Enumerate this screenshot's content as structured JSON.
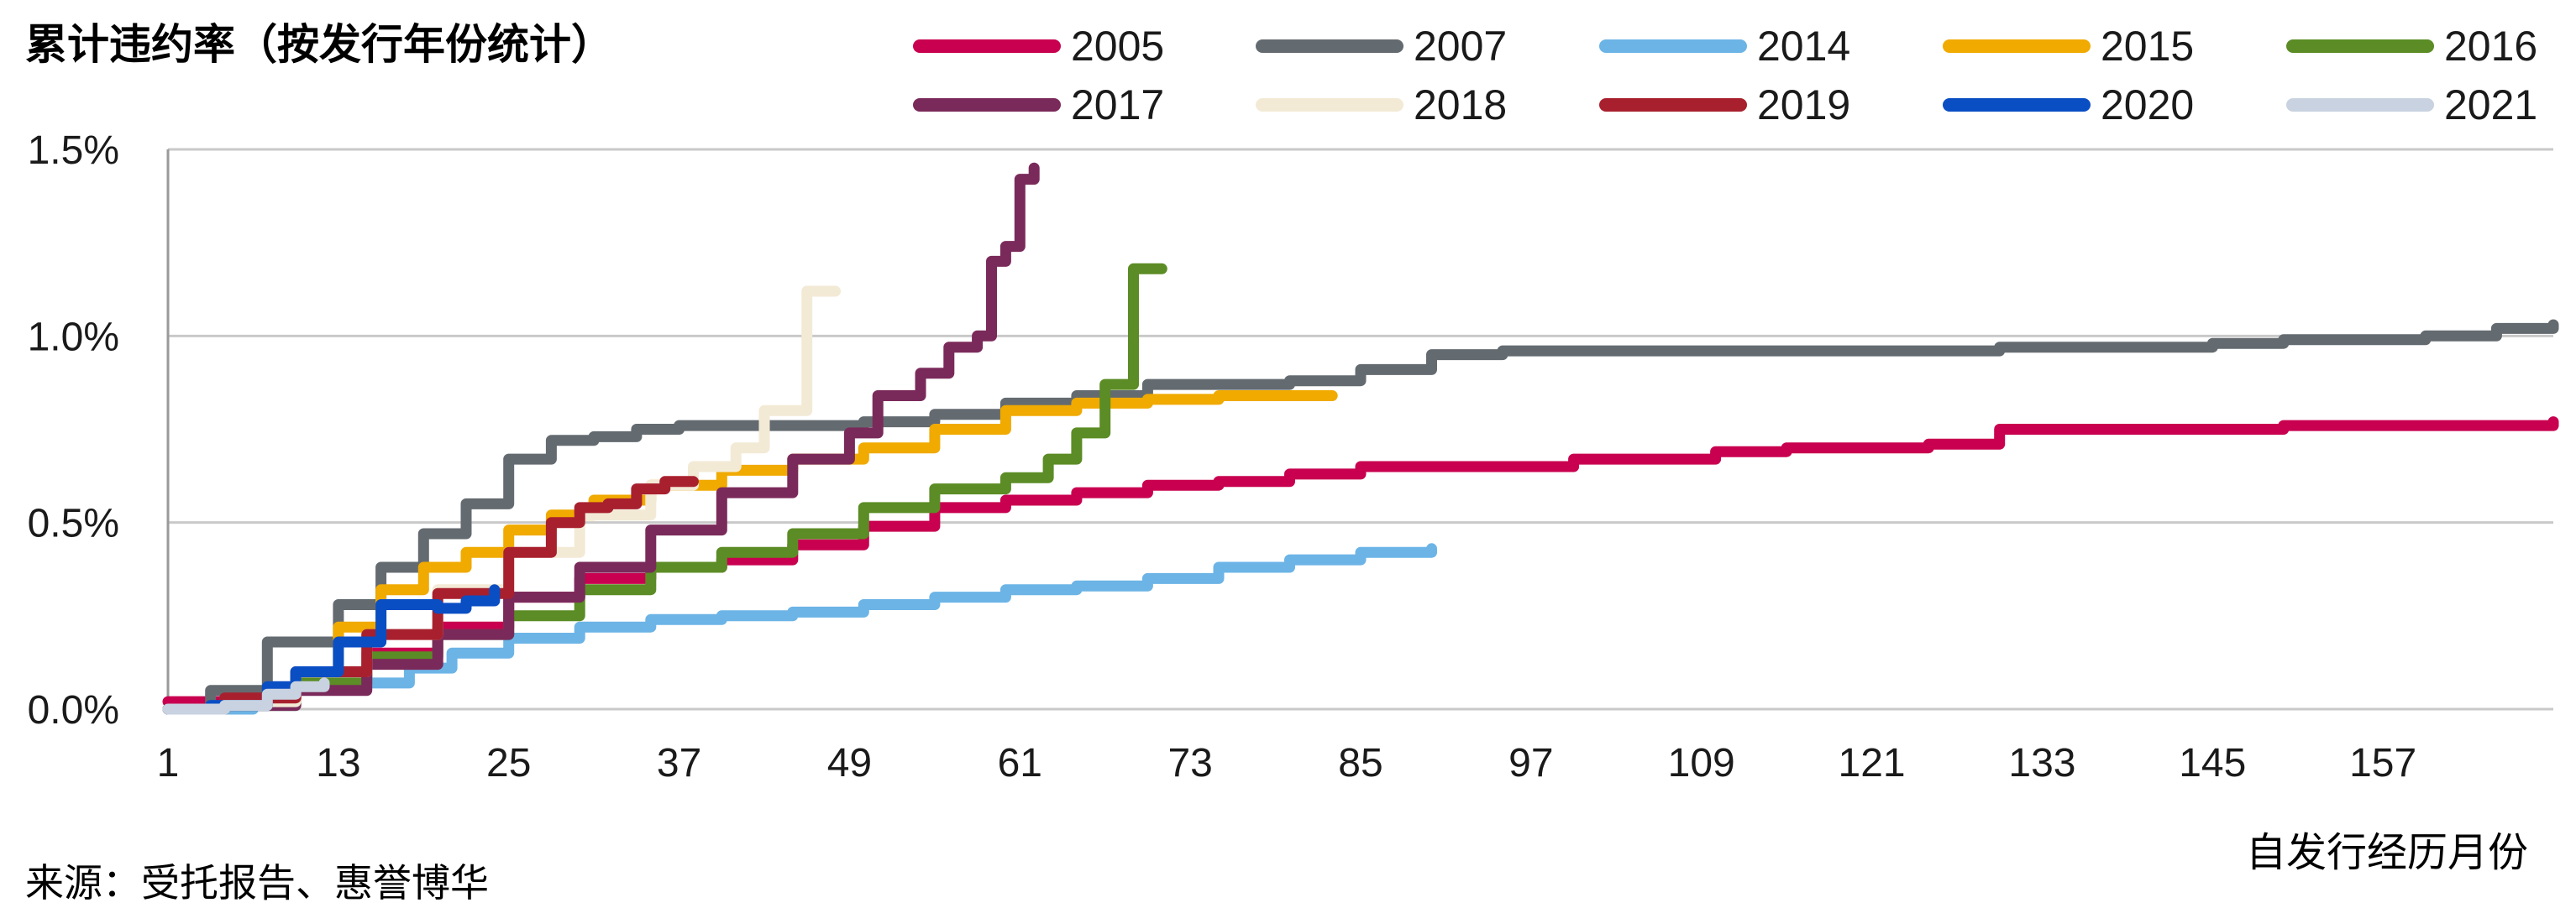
{
  "chart_data": {
    "type": "line",
    "title": "累计违约率（按发行年份统计）",
    "xlabel": "自发行经历月份",
    "ylabel": "",
    "source": "来源：受托报告、惠誉博华",
    "legend_position": "top",
    "grid": true,
    "xlim": [
      1,
      169
    ],
    "ylim": [
      0,
      1.5
    ],
    "x_ticks": [
      "1",
      "13",
      "25",
      "37",
      "49",
      "61",
      "73",
      "85",
      "97",
      "109",
      "121",
      "133",
      "145",
      "157"
    ],
    "y_ticks": [
      "0.0%",
      "0.5%",
      "1.0%",
      "1.5%"
    ],
    "y_tick_values": [
      0,
      0.5,
      1.0,
      1.5
    ],
    "series": [
      {
        "name": "2005",
        "color": "#c8004f",
        "points": [
          [
            1,
            0.02
          ],
          [
            5,
            0.03
          ],
          [
            10,
            0.07
          ],
          [
            15,
            0.15
          ],
          [
            20,
            0.22
          ],
          [
            25,
            0.3
          ],
          [
            30,
            0.35
          ],
          [
            35,
            0.38
          ],
          [
            40,
            0.4
          ],
          [
            45,
            0.44
          ],
          [
            50,
            0.49
          ],
          [
            55,
            0.54
          ],
          [
            60,
            0.56
          ],
          [
            65,
            0.58
          ],
          [
            70,
            0.6
          ],
          [
            75,
            0.61
          ],
          [
            80,
            0.63
          ],
          [
            85,
            0.65
          ],
          [
            95,
            0.65
          ],
          [
            100,
            0.67
          ],
          [
            110,
            0.69
          ],
          [
            115,
            0.7
          ],
          [
            125,
            0.71
          ],
          [
            130,
            0.75
          ],
          [
            145,
            0.75
          ],
          [
            150,
            0.76
          ],
          [
            165,
            0.76
          ],
          [
            169,
            0.77
          ]
        ]
      },
      {
        "name": "2007",
        "color": "#646b70",
        "points": [
          [
            1,
            0.0
          ],
          [
            4,
            0.05
          ],
          [
            8,
            0.18
          ],
          [
            13,
            0.28
          ],
          [
            16,
            0.38
          ],
          [
            19,
            0.47
          ],
          [
            22,
            0.55
          ],
          [
            25,
            0.67
          ],
          [
            28,
            0.72
          ],
          [
            31,
            0.73
          ],
          [
            34,
            0.75
          ],
          [
            37,
            0.76
          ],
          [
            45,
            0.76
          ],
          [
            50,
            0.77
          ],
          [
            55,
            0.79
          ],
          [
            60,
            0.82
          ],
          [
            65,
            0.84
          ],
          [
            70,
            0.87
          ],
          [
            80,
            0.88
          ],
          [
            85,
            0.91
          ],
          [
            90,
            0.95
          ],
          [
            95,
            0.96
          ],
          [
            125,
            0.96
          ],
          [
            130,
            0.97
          ],
          [
            145,
            0.98
          ],
          [
            150,
            0.99
          ],
          [
            160,
            1.0
          ],
          [
            165,
            1.02
          ],
          [
            169,
            1.03
          ]
        ]
      },
      {
        "name": "2014",
        "color": "#6cb4e6",
        "points": [
          [
            1,
            0.0
          ],
          [
            7,
            0.01
          ],
          [
            10,
            0.06
          ],
          [
            15,
            0.07
          ],
          [
            18,
            0.11
          ],
          [
            21,
            0.15
          ],
          [
            25,
            0.19
          ],
          [
            30,
            0.22
          ],
          [
            35,
            0.24
          ],
          [
            40,
            0.25
          ],
          [
            45,
            0.26
          ],
          [
            50,
            0.28
          ],
          [
            55,
            0.3
          ],
          [
            60,
            0.32
          ],
          [
            65,
            0.33
          ],
          [
            70,
            0.35
          ],
          [
            75,
            0.38
          ],
          [
            80,
            0.4
          ],
          [
            85,
            0.42
          ],
          [
            90,
            0.43
          ]
        ]
      },
      {
        "name": "2015",
        "color": "#f0aa00",
        "points": [
          [
            1,
            0.0
          ],
          [
            5,
            0.02
          ],
          [
            10,
            0.1
          ],
          [
            13,
            0.22
          ],
          [
            16,
            0.32
          ],
          [
            19,
            0.38
          ],
          [
            22,
            0.42
          ],
          [
            25,
            0.48
          ],
          [
            28,
            0.52
          ],
          [
            31,
            0.56
          ],
          [
            35,
            0.6
          ],
          [
            40,
            0.64
          ],
          [
            45,
            0.67
          ],
          [
            50,
            0.7
          ],
          [
            55,
            0.75
          ],
          [
            60,
            0.8
          ],
          [
            65,
            0.82
          ],
          [
            70,
            0.83
          ],
          [
            75,
            0.84
          ],
          [
            83,
            0.84
          ]
        ]
      },
      {
        "name": "2016",
        "color": "#5b8c25",
        "points": [
          [
            1,
            0.0
          ],
          [
            5,
            0.01
          ],
          [
            10,
            0.07
          ],
          [
            15,
            0.14
          ],
          [
            20,
            0.2
          ],
          [
            25,
            0.25
          ],
          [
            30,
            0.32
          ],
          [
            35,
            0.38
          ],
          [
            40,
            0.42
          ],
          [
            45,
            0.47
          ],
          [
            50,
            0.54
          ],
          [
            55,
            0.59
          ],
          [
            60,
            0.62
          ],
          [
            63,
            0.67
          ],
          [
            65,
            0.74
          ],
          [
            67,
            0.87
          ],
          [
            69,
            1.18
          ],
          [
            71,
            1.18
          ]
        ]
      },
      {
        "name": "2017",
        "color": "#7a2a5a",
        "points": [
          [
            1,
            0.0
          ],
          [
            5,
            0.01
          ],
          [
            10,
            0.05
          ],
          [
            15,
            0.12
          ],
          [
            20,
            0.2
          ],
          [
            25,
            0.3
          ],
          [
            30,
            0.38
          ],
          [
            35,
            0.48
          ],
          [
            40,
            0.58
          ],
          [
            45,
            0.67
          ],
          [
            49,
            0.74
          ],
          [
            51,
            0.84
          ],
          [
            54,
            0.9
          ],
          [
            56,
            0.97
          ],
          [
            58,
            1.0
          ],
          [
            59,
            1.2
          ],
          [
            60,
            1.24
          ],
          [
            61,
            1.42
          ],
          [
            62,
            1.45
          ]
        ]
      },
      {
        "name": "2018",
        "color": "#f3ead6",
        "points": [
          [
            1,
            0.0
          ],
          [
            5,
            0.02
          ],
          [
            10,
            0.1
          ],
          [
            15,
            0.2
          ],
          [
            20,
            0.32
          ],
          [
            25,
            0.42
          ],
          [
            30,
            0.52
          ],
          [
            35,
            0.6
          ],
          [
            38,
            0.65
          ],
          [
            41,
            0.7
          ],
          [
            43,
            0.8
          ],
          [
            44,
            0.8
          ],
          [
            46,
            1.12
          ],
          [
            48,
            1.12
          ]
        ]
      },
      {
        "name": "2019",
        "color": "#a8202e",
        "points": [
          [
            1,
            0.0
          ],
          [
            5,
            0.03
          ],
          [
            10,
            0.1
          ],
          [
            15,
            0.2
          ],
          [
            20,
            0.31
          ],
          [
            25,
            0.42
          ],
          [
            28,
            0.5
          ],
          [
            30,
            0.54
          ],
          [
            32,
            0.55
          ],
          [
            34,
            0.59
          ],
          [
            36,
            0.61
          ],
          [
            38,
            0.61
          ]
        ]
      },
      {
        "name": "2020",
        "color": "#0a4ec4",
        "points": [
          [
            1,
            0.0
          ],
          [
            4,
            0.01
          ],
          [
            8,
            0.06
          ],
          [
            10,
            0.1
          ],
          [
            13,
            0.18
          ],
          [
            16,
            0.28
          ],
          [
            18,
            0.28
          ],
          [
            20,
            0.27
          ],
          [
            22,
            0.29
          ],
          [
            24,
            0.32
          ]
        ]
      },
      {
        "name": "2021",
        "color": "#c8d2e0",
        "points": [
          [
            1,
            0.0
          ],
          [
            5,
            0.01
          ],
          [
            8,
            0.04
          ],
          [
            10,
            0.06
          ],
          [
            12,
            0.07
          ]
        ]
      }
    ]
  }
}
